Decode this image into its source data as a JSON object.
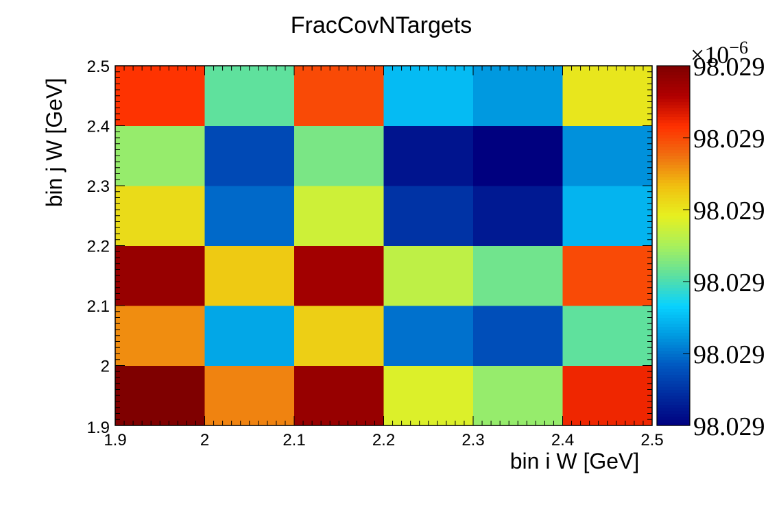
{
  "chart_data": {
    "type": "heatmap",
    "title": "FracCovNTargets",
    "xlabel": "bin i W [GeV]",
    "ylabel": "bin j W [GeV]",
    "x_edges": [
      1.9,
      2.0,
      2.1,
      2.2,
      2.3,
      2.4,
      2.5
    ],
    "y_edges": [
      1.9,
      2.0,
      2.1,
      2.2,
      2.3,
      2.4,
      2.5
    ],
    "xlim": [
      1.9,
      2.5
    ],
    "ylim": [
      1.9,
      2.5
    ],
    "x_tick_labels": [
      "1.9",
      "2",
      "2.1",
      "2.2",
      "2.3",
      "2.4",
      "2.5"
    ],
    "y_tick_labels": [
      "1.9",
      "2",
      "2.1",
      "2.2",
      "2.3",
      "2.4",
      "2.5"
    ],
    "z_note": "cell values are relative colour levels (0 = minimum, 1 = maximum of the z range)",
    "rows_bottom_to_top": [
      [
        1.0,
        0.73,
        0.96,
        0.57,
        0.48,
        0.85
      ],
      [
        0.72,
        0.27,
        0.64,
        0.2,
        0.15,
        0.42
      ],
      [
        0.96,
        0.65,
        0.94,
        0.53,
        0.44,
        0.8
      ],
      [
        0.62,
        0.19,
        0.55,
        0.1,
        0.05,
        0.29
      ],
      [
        0.48,
        0.14,
        0.45,
        0.04,
        0.0,
        0.24
      ],
      [
        0.83,
        0.42,
        0.8,
        0.3,
        0.25,
        0.6
      ]
    ],
    "colorbar": {
      "multiplier": "×10",
      "exponent": "−6",
      "tick_labels": [
        "98.029",
        "98.029",
        "98.029",
        "98.029",
        "98.029",
        "98.029"
      ],
      "tick_levels": [
        0,
        0.2,
        0.4,
        0.6,
        0.8,
        1.0
      ],
      "palette": [
        "#00007f",
        "#002a9e",
        "#0057c0",
        "#0099e0",
        "#08d2ff",
        "#5ce0a0",
        "#a8f05c",
        "#e6f020",
        "#f0c010",
        "#f07010",
        "#ff3000",
        "#b00000",
        "#7f0000"
      ]
    }
  }
}
